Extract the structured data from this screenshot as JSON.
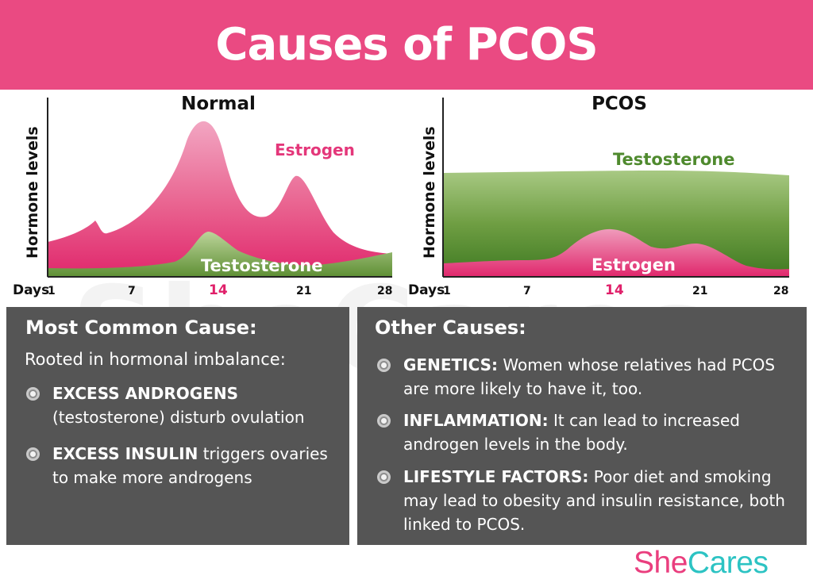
{
  "title": "Causes of PCOS",
  "watermark": "SheCares",
  "x_axis": {
    "label": "Days",
    "ticks": [
      "1",
      "7",
      "14",
      "21",
      "28"
    ],
    "highlight": "14"
  },
  "y_axis": {
    "label": "Hormone levels"
  },
  "chart_data": [
    {
      "type": "area",
      "title": "Normal",
      "xlabel": "Days",
      "ylabel": "Hormone levels",
      "x_ticks": [
        1,
        7,
        14,
        21,
        28
      ],
      "series": [
        {
          "name": "Estrogen",
          "color": "#e4377a"
        },
        {
          "name": "Testosterone",
          "color": "#6f9a47"
        }
      ]
    },
    {
      "type": "area",
      "title": "PCOS",
      "xlabel": "Days",
      "ylabel": "Hormone levels",
      "x_ticks": [
        1,
        7,
        14,
        21,
        28
      ],
      "series": [
        {
          "name": "Testosterone",
          "color": "#4f8a2e"
        },
        {
          "name": "Estrogen",
          "color": "#e4377a"
        }
      ]
    }
  ],
  "left_panel": {
    "heading": "Most Common Cause:",
    "intro": "Rooted in hormonal imbalance:",
    "items": [
      {
        "bold": "EXCESS ANDROGENS",
        "text": "(testosterone) disturb ovulation"
      },
      {
        "bold": "EXCESS INSULIN",
        "text": " triggers ovaries to make more androgens"
      }
    ]
  },
  "right_panel": {
    "heading": "Other Causes:",
    "items": [
      {
        "bold": "GENETICS:",
        "text": " Women whose relatives had PCOS are more likely to have it, too."
      },
      {
        "bold": "INFLAMMATION:",
        "text": " It can lead to increased androgen levels in the body."
      },
      {
        "bold": "LIFESTYLE FACTORS:",
        "text": " Poor diet and smoking may lead to obesity and insulin resistance, both linked to PCOS."
      }
    ]
  },
  "logo": {
    "part1": "She",
    "part2": "Cares"
  },
  "colors": {
    "banner": "#ea4a82",
    "panel": "#555555",
    "estrogen_label": "#e4377a",
    "testosterone_label": "#4f8a2e",
    "highlight_tick": "#e0206a",
    "logo_she": "#ea3e7e",
    "logo_cares": "#2cc3c3"
  }
}
